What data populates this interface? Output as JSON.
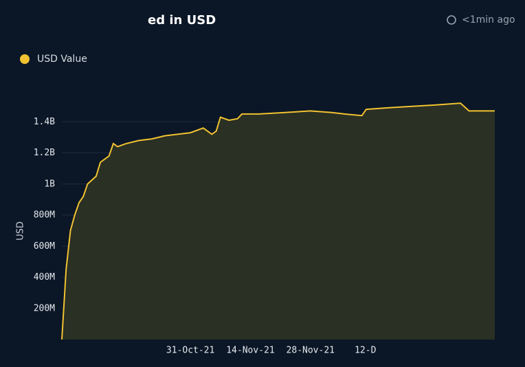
{
  "chart_data": {
    "type": "line",
    "title": "ed in USD",
    "updated": "<1min ago",
    "y_label": "USD",
    "grid": true,
    "legend": "top-left",
    "x": [
      "01-Oct-21",
      "02-Oct-21",
      "03-Oct-21",
      "04-Oct-21",
      "05-Oct-21",
      "06-Oct-21",
      "07-Oct-21",
      "09-Oct-21",
      "10-Oct-21",
      "12-Oct-21",
      "13-Oct-21",
      "14-Oct-21",
      "16-Oct-21",
      "19-Oct-21",
      "22-Oct-21",
      "25-Oct-21",
      "28-Oct-21",
      "31-Oct-21",
      "03-Nov-21",
      "05-Nov-21",
      "06-Nov-21",
      "07-Nov-21",
      "09-Nov-21",
      "11-Nov-21",
      "12-Nov-21",
      "16-Nov-21",
      "22-Nov-21",
      "28-Nov-21",
      "03-Dec-21",
      "06-Dec-21",
      "10-Dec-21",
      "11-Dec-21",
      "16-Dec-21",
      "22-Dec-21",
      "28-Dec-21",
      "02-Jan-22",
      "04-Jan-22",
      "10-Jan-22"
    ],
    "series": [
      {
        "name": "USD Value",
        "color": "#f2c230",
        "values": [
          0,
          450000000,
          700000000,
          800000000,
          880000000,
          920000000,
          1000000000,
          1050000000,
          1140000000,
          1180000000,
          1260000000,
          1240000000,
          1260000000,
          1280000000,
          1290000000,
          1310000000,
          1320000000,
          1330000000,
          1360000000,
          1320000000,
          1340000000,
          1430000000,
          1410000000,
          1420000000,
          1450000000,
          1450000000,
          1460000000,
          1470000000,
          1460000000,
          1450000000,
          1440000000,
          1480000000,
          1490000000,
          1500000000,
          1510000000,
          1520000000,
          1470000000,
          1470000000
        ]
      }
    ],
    "xlim": [
      "01-Oct-21",
      "10-Jan-22"
    ],
    "xticks": [
      "31-Oct-21",
      "14-Nov-21",
      "28-Nov-21",
      {
        "value": "12-Dec-21",
        "label": "12-D"
      }
    ],
    "ylim": [
      0,
      1600000000
    ],
    "yticks": [
      {
        "value": 200000000,
        "label": "200M"
      },
      {
        "value": 400000000,
        "label": "400M"
      },
      {
        "value": 600000000,
        "label": "600M"
      },
      {
        "value": 800000000,
        "label": "800M"
      },
      {
        "value": 1000000000,
        "label": "1B"
      },
      {
        "value": 1200000000,
        "label": "1.2B"
      },
      {
        "value": 1400000000,
        "label": "1.4B"
      }
    ]
  }
}
